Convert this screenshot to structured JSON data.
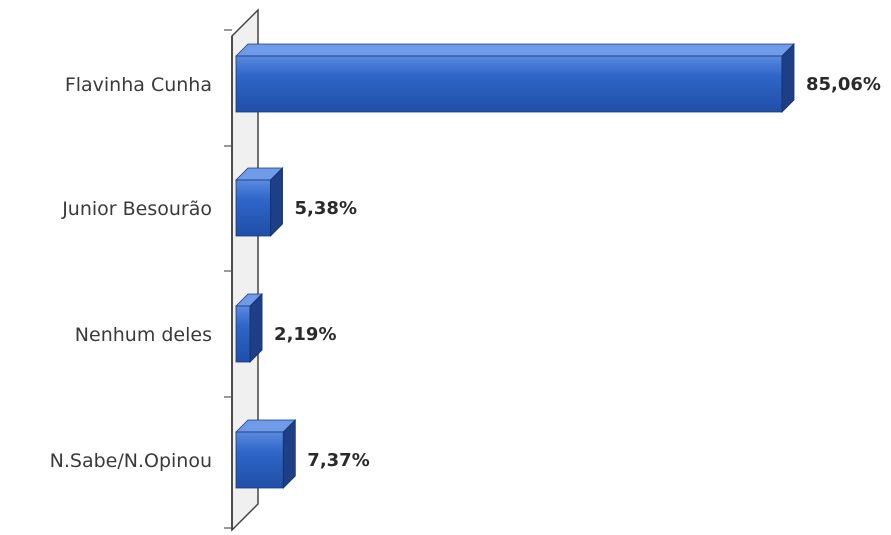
{
  "chart_data": {
    "type": "bar",
    "orientation": "horizontal",
    "style": "3d",
    "categories": [
      "Flavinha Cunha",
      "Junior Besourão",
      "Nenhum deles",
      "N.Sabe/N.Opinou"
    ],
    "values": [
      85.06,
      5.38,
      2.19,
      7.37
    ],
    "value_labels": [
      "85,06%",
      "5,38%",
      "2,19%",
      "7,37%"
    ],
    "unit": "%",
    "xlim": [
      0,
      85.06
    ],
    "bar_color": "#2f66c8",
    "bar_side_color": "#1e3f86",
    "bar_top_color": "#6f9be8",
    "axis_wall_color": "#f0f0f0",
    "grid": false,
    "legend": "none"
  }
}
